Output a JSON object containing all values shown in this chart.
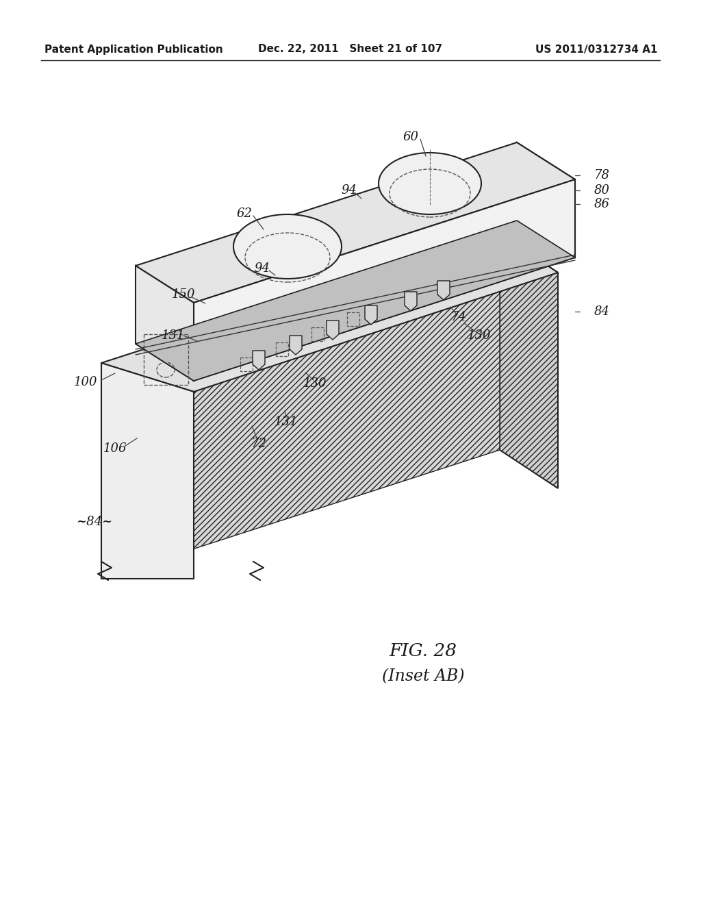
{
  "header_left": "Patent Application Publication",
  "header_mid": "Dec. 22, 2011   Sheet 21 of 107",
  "header_right": "US 2011/0312734 A1",
  "fig_label": "FIG. 28",
  "fig_sublabel": "(Inset AB)",
  "bg_color": "#ffffff",
  "line_color": "#222222",
  "label_fontsize": 13,
  "header_fontsize": 11
}
